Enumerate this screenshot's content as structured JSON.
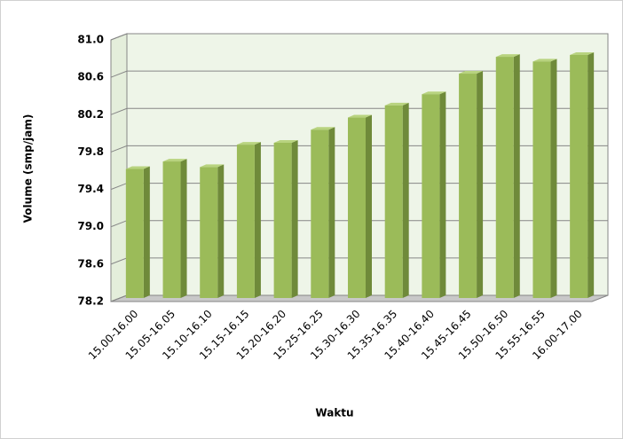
{
  "chart_data": {
    "type": "bar",
    "y_label": "Volume (smp/jam)",
    "x_label": "Waktu",
    "categories": [
      "15.00-16.00",
      "15.05-16.05",
      "15.10-16.10",
      "15.15-16.15",
      "15.20-16.20",
      "15.25-16.25",
      "15.30-16.30",
      "15.35-16.35",
      "15.40-16.40",
      "15.45-16.45",
      "15.50-16.50",
      "15.55-16.55",
      "16.00-17.00"
    ],
    "values": [
      79.6,
      79.68,
      79.62,
      79.86,
      79.88,
      80.02,
      80.15,
      80.28,
      80.4,
      80.62,
      80.8,
      80.75,
      80.82
    ],
    "color": "#9bbb59",
    "ylim": [
      78.2,
      81.0
    ],
    "yticks": [
      78.2,
      78.6,
      {
        "value": 79.0,
        "label": "79.0"
      },
      79.4,
      79.8,
      80.2,
      80.6,
      {
        "value": 81.0,
        "label": "81.0"
      }
    ],
    "grid": true
  }
}
